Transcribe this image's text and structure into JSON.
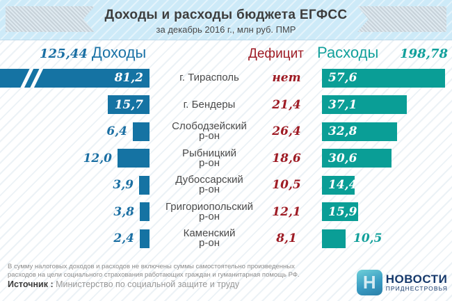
{
  "header": {
    "title": "Доходы и расходы бюджета ЕГФСС",
    "subtitle": "за декабрь 2016 г., млн руб. ПМР"
  },
  "columns": {
    "income_total": "125,44",
    "income_label": "Доходы",
    "deficit_label": "Дефицит",
    "expense_label": "Расходы",
    "expense_total": "198,78"
  },
  "rows": [
    {
      "region_line1": "г. Тирасполь",
      "region_line2": "",
      "income": "81,2",
      "deficit": "нет",
      "expense": "57,6"
    },
    {
      "region_line1": "г. Бендеры",
      "region_line2": "",
      "income": "15,7",
      "deficit": "21,4",
      "expense": "37,1"
    },
    {
      "region_line1": "Слободзейский",
      "region_line2": "р-он",
      "income": "6,4",
      "deficit": "26,4",
      "expense": "32,8"
    },
    {
      "region_line1": "Рыбницкий",
      "region_line2": "р-он",
      "income": "12,0",
      "deficit": "18,6",
      "expense": "30,6"
    },
    {
      "region_line1": "Дубоссарский",
      "region_line2": "р-он",
      "income": "3,9",
      "deficit": "10,5",
      "expense": "14,4"
    },
    {
      "region_line1": "Григориопольский",
      "region_line2": "р-он",
      "income": "3,8",
      "deficit": "12,1",
      "expense": "15,9"
    },
    {
      "region_line1": "Каменский",
      "region_line2": "р-он",
      "income": "2,4",
      "deficit": "8,1",
      "expense": "10,5"
    }
  ],
  "chart_data": {
    "type": "bar",
    "title": "Доходы и расходы бюджета ЕГФСС",
    "subtitle": "за декабрь 2016 г., млн руб. ПМР",
    "unit": "млн руб. ПМР",
    "categories": [
      "г. Тирасполь",
      "г. Бендеры",
      "Слободзейский р-он",
      "Рыбницкий р-он",
      "Дубоссарский р-он",
      "Григориопольский р-он",
      "Каменский р-он"
    ],
    "series": [
      {
        "name": "Доходы",
        "total": 125.44,
        "values": [
          81.2,
          15.7,
          6.4,
          12.0,
          3.9,
          3.8,
          2.4
        ]
      },
      {
        "name": "Дефицит",
        "values": [
          null,
          21.4,
          26.4,
          18.6,
          10.5,
          12.1,
          8.1
        ],
        "display": [
          "нет",
          "21,4",
          "26,4",
          "18,6",
          "10,5",
          "12,1",
          "8,1"
        ]
      },
      {
        "name": "Расходы",
        "total": 198.78,
        "values": [
          57.6,
          37.1,
          32.8,
          30.6,
          14.4,
          15.9,
          10.5
        ]
      }
    ],
    "layout": {
      "orientation": "horizontal, mirrored tornado layout",
      "income_bars": "right-aligned toward center, first bar truncated with break marks",
      "expense_bars": "left-aligned from center",
      "grid": false,
      "legend": "column headers above chart"
    }
  },
  "footer": {
    "note_line1": "В сумму налоговых доходов и расходов не включены суммы самостоятельно произведенных",
    "note_line2": "расходов на цели социального страхования работающих граждан и гуманитарная помощь РФ.",
    "source_label": "Источник :",
    "source_text": "Министерство по социальной защите и труду",
    "logo_letter": "Н",
    "logo_title": "НОВОСТИ",
    "logo_subtitle": "ПРИДНЕСТРОВЬЯ"
  },
  "colors": {
    "income_bar": "#1573a3",
    "expense_bar": "#0a9e96",
    "deficit_text": "#9e1b24",
    "header_band": "#cdeaf8",
    "logo_navy": "#16396b"
  }
}
